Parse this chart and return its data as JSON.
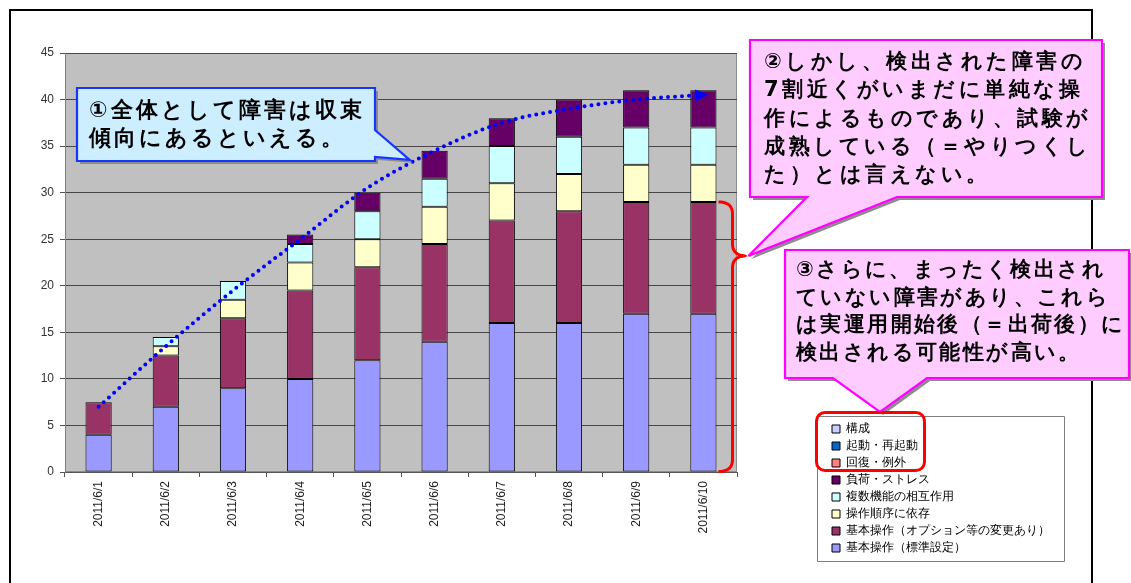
{
  "chart_data": {
    "type": "bar",
    "stacked": true,
    "categories": [
      "2011/6/1",
      "2011/6/2",
      "2011/6/3",
      "2011/6/4",
      "2011/6/5",
      "2011/6/6",
      "2011/6/7",
      "2011/6/8",
      "2011/6/9",
      "2011/6/10"
    ],
    "series": [
      {
        "name": "基本操作（標準設定）",
        "color": "#9999ff",
        "values": [
          4,
          7,
          9,
          10,
          12,
          14,
          16,
          16,
          17,
          17
        ]
      },
      {
        "name": "基本操作（オプション等の変更あり）",
        "color": "#993366",
        "values": [
          3.5,
          5.5,
          7.5,
          9.5,
          10,
          10.5,
          11,
          12,
          12,
          12
        ]
      },
      {
        "name": "操作順序に依存",
        "color": "#ffffcc",
        "values": [
          0,
          1,
          2,
          3,
          3,
          4,
          4,
          4,
          4,
          4
        ]
      },
      {
        "name": "複数機能の相互作用",
        "color": "#ccffff",
        "values": [
          0,
          1,
          2,
          2,
          3,
          3,
          4,
          4,
          4,
          4
        ]
      },
      {
        "name": "負荷・ストレス",
        "color": "#660066",
        "values": [
          0,
          0,
          0,
          1,
          2,
          3,
          3,
          4,
          4,
          4
        ]
      },
      {
        "name": "回復・例外",
        "color": "#ff8080",
        "values": [
          0,
          0,
          0,
          0,
          0,
          0,
          0,
          0,
          0,
          0
        ]
      },
      {
        "name": "起動・再起動",
        "color": "#0066cc",
        "values": [
          0,
          0,
          0,
          0,
          0,
          0,
          0,
          0,
          0,
          0
        ]
      },
      {
        "name": "構成",
        "color": "#ccccff",
        "values": [
          0,
          0,
          0,
          0,
          0,
          0,
          0,
          0,
          0,
          0
        ]
      },
      {
        "type": "line",
        "color": "#0000ff",
        "line_style": "dotted",
        "marker": "none",
        "x": [
          "2011/6/1",
          "2011/6/2",
          "2011/6/3",
          "2011/6/4",
          "2011/6/5",
          "2011/6/6",
          "2011/6/7",
          "2011/6/8",
          "2011/6/9",
          "2011/6/10"
        ],
        "values": [
          7,
          13.5,
          19.5,
          25,
          30.5,
          34.5,
          37.5,
          39,
          40,
          40.5
        ]
      }
    ],
    "ylim": [
      0,
      45
    ],
    "yticks": [
      0,
      5,
      10,
      15,
      20,
      25,
      30,
      35,
      40,
      45
    ],
    "grid": "y",
    "legend": "bottom right",
    "annotations": [
      "①全体として障害は収束傾向にあるといえる。",
      "②しかし、検出された障害の7割近くがいまだに単純な操作によるものであり、試験が成熟している（＝やりつくした）とは言えない。",
      "③さらに、まったく検出されていない障害があり、これらは実運用開始後（＝出荷後）に検出される可能性が高い。"
    ]
  }
}
